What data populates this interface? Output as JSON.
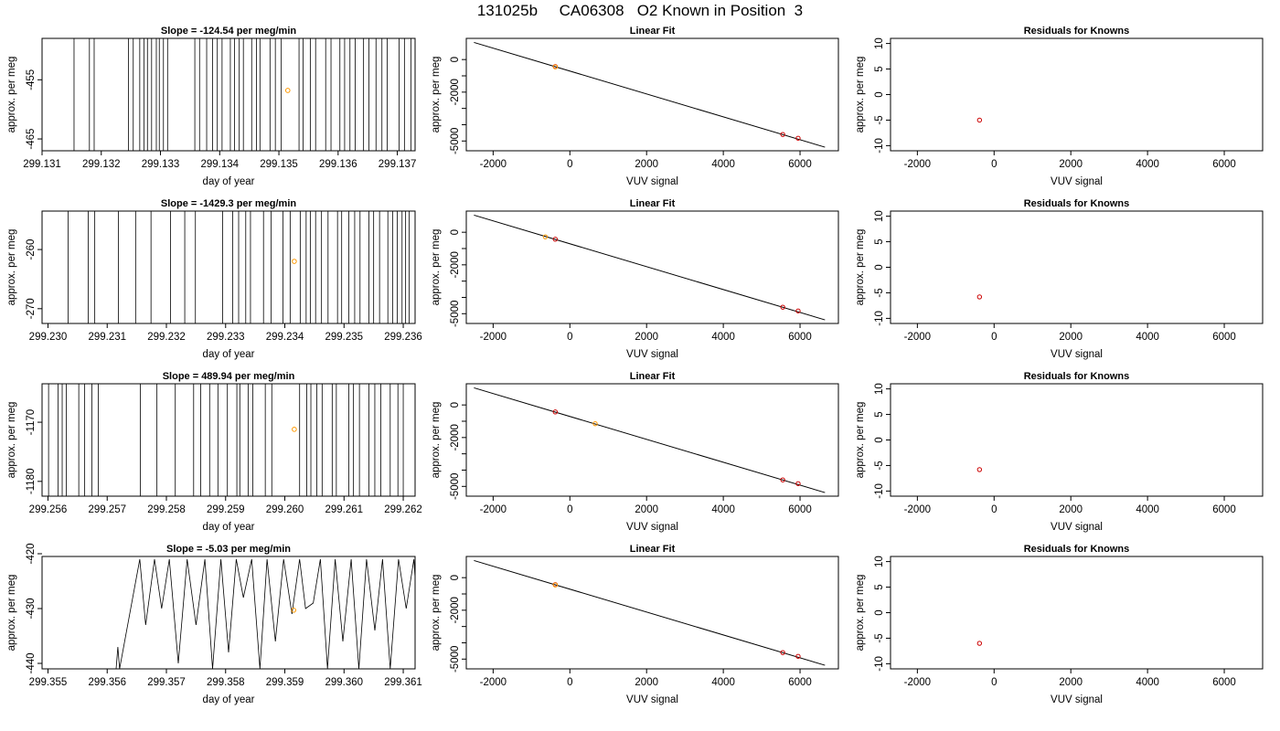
{
  "title": "131025b     CA06308   O2 Known in Position  3",
  "colors": {
    "trace": "#000000",
    "orange_point": "#ff9900",
    "red_point": "#cc0000",
    "fit_line": "#000000"
  },
  "chart_data": [
    {
      "type": "line",
      "title": "Slope =  -124.54  per meg/min",
      "xlabel": "day of year",
      "ylabel": "approx. per meg",
      "xlim": [
        299.131,
        299.1373
      ],
      "ylim": [
        -467,
        -448
      ],
      "xticks": [
        299.131,
        299.132,
        299.133,
        299.134,
        299.135,
        299.136,
        299.137
      ],
      "xtick_labels": [
        "299.131",
        "299.132",
        "299.133",
        "299.134",
        "299.135",
        "299.136",
        "299.137"
      ],
      "yticks": [
        -465,
        -455
      ],
      "ytick_labels": [
        "-465",
        "-455"
      ],
      "spikes": [
        299.13154,
        299.1318,
        299.13188,
        299.13246,
        299.13254,
        299.13265,
        299.13272,
        299.13278,
        299.13285,
        299.13293,
        299.13298,
        299.13305,
        299.13312,
        299.13358,
        299.13366,
        299.13378,
        299.13388,
        299.13396,
        299.13404,
        299.13418,
        299.13425,
        299.13433,
        299.1344,
        299.13454,
        299.13462,
        299.13468,
        299.13485,
        299.13494,
        299.13504,
        299.13534,
        299.13541,
        299.13553,
        299.13562,
        299.13579,
        299.13588,
        299.13603,
        299.13611,
        299.1362,
        299.13629,
        299.13643,
        299.13652,
        299.13664,
        299.13674,
        299.13683,
        299.13703,
        299.13712,
        299.13723,
        299.1373
      ],
      "marked_point": {
        "x": 299.13515,
        "y": -456.8
      }
    },
    {
      "type": "scatter",
      "title": "Linear Fit",
      "xlabel": "VUV signal",
      "ylabel": "approx. per meg",
      "xlim": [
        -2700,
        7000
      ],
      "ylim": [
        -5600,
        1300
      ],
      "xticks": [
        -2000,
        0,
        2000,
        4000,
        6000
      ],
      "xtick_labels": [
        "-2000",
        "0",
        "2000",
        "4000",
        "6000"
      ],
      "yticks": [
        -5000,
        -4000,
        -3000,
        -2000,
        -1000,
        0
      ],
      "ytick_labels": [
        "-5000",
        "",
        "",
        "-2000",
        "",
        "0"
      ],
      "fit_line": {
        "x": [
          -2500,
          6650
        ],
        "y": [
          1050,
          -5380
        ]
      },
      "known_points": [
        {
          "x": -380,
          "y": -430
        },
        {
          "x": 5550,
          "y": -4600
        },
        {
          "x": 5950,
          "y": -4830
        }
      ],
      "sample_point": {
        "x": -380,
        "y": -450
      }
    },
    {
      "type": "scatter",
      "title": "Residuals for Knowns",
      "xlabel": "VUV signal",
      "ylabel": "approx. per meg",
      "xlim": [
        -2700,
        7000
      ],
      "ylim": [
        -11,
        11
      ],
      "xticks": [
        -2000,
        0,
        2000,
        4000,
        6000
      ],
      "xtick_labels": [
        "-2000",
        "0",
        "2000",
        "4000",
        "6000"
      ],
      "yticks": [
        -10,
        -5,
        0,
        5,
        10
      ],
      "ytick_labels": [
        "-10",
        "-5",
        "0",
        "5",
        "10"
      ],
      "points": [
        {
          "x": -380,
          "y": -5.0
        }
      ]
    },
    {
      "type": "line",
      "title": "Slope =  -1429.3  per meg/min",
      "xlabel": "day of year",
      "ylabel": "approx. per meg",
      "xlim": [
        299.2299,
        299.2362
      ],
      "ylim": [
        -272.5,
        -253.5
      ],
      "xticks": [
        299.23,
        299.231,
        299.232,
        299.233,
        299.234,
        299.235,
        299.236
      ],
      "xtick_labels": [
        "299.230",
        "299.231",
        "299.232",
        "299.233",
        "299.234",
        "299.235",
        "299.236"
      ],
      "yticks": [
        -270,
        -260
      ],
      "ytick_labels": [
        "-270",
        "-260"
      ],
      "spikes": [
        299.23034,
        299.23068,
        299.23079,
        299.23119,
        299.23148,
        299.23174,
        299.23207,
        299.23231,
        299.23249,
        299.23295,
        299.23312,
        299.23322,
        299.23334,
        299.23342,
        299.23364,
        299.23377,
        299.23397,
        299.23409,
        299.23426,
        299.23436,
        299.23443,
        299.23452,
        299.23462,
        299.23473,
        299.23489,
        299.23496,
        299.23508,
        299.23518,
        299.23527,
        299.23542,
        299.2355,
        299.2356,
        299.23574,
        299.23582,
        299.2359,
        299.23598,
        299.23604,
        299.2361
      ],
      "marked_point": {
        "x": 299.23416,
        "y": -262.0
      }
    },
    {
      "type": "scatter",
      "title": "Linear Fit",
      "xlabel": "VUV signal",
      "ylabel": "approx. per meg",
      "xlim": [
        -2700,
        7000
      ],
      "ylim": [
        -5600,
        1300
      ],
      "xticks": [
        -2000,
        0,
        2000,
        4000,
        6000
      ],
      "xtick_labels": [
        "-2000",
        "0",
        "2000",
        "4000",
        "6000"
      ],
      "yticks": [
        -5000,
        -4000,
        -3000,
        -2000,
        -1000,
        0
      ],
      "ytick_labels": [
        "-5000",
        "",
        "",
        "-2000",
        "",
        "0"
      ],
      "fit_line": {
        "x": [
          -2500,
          6650
        ],
        "y": [
          1050,
          -5380
        ]
      },
      "known_points": [
        {
          "x": -380,
          "y": -430
        },
        {
          "x": 5550,
          "y": -4600
        },
        {
          "x": 5950,
          "y": -4830
        }
      ],
      "sample_point": {
        "x": -640,
        "y": -280
      }
    },
    {
      "type": "scatter",
      "title": "Residuals for Knowns",
      "xlabel": "VUV signal",
      "ylabel": "approx. per meg",
      "xlim": [
        -2700,
        7000
      ],
      "ylim": [
        -11,
        11
      ],
      "xticks": [
        -2000,
        0,
        2000,
        4000,
        6000
      ],
      "xtick_labels": [
        "-2000",
        "0",
        "2000",
        "4000",
        "6000"
      ],
      "yticks": [
        -10,
        -5,
        0,
        5,
        10
      ],
      "ytick_labels": [
        "-10",
        "-5",
        "0",
        "5",
        "10"
      ],
      "points": [
        {
          "x": -380,
          "y": -5.8
        }
      ]
    },
    {
      "type": "line",
      "title": "Slope =  489.94  per meg/min",
      "xlabel": "day of year",
      "ylabel": "approx. per meg",
      "xlim": [
        299.2559,
        299.2622
      ],
      "ylim": [
        -1182.5,
        -1163.5
      ],
      "xticks": [
        299.256,
        299.257,
        299.258,
        299.259,
        299.26,
        299.261,
        299.262
      ],
      "xtick_labels": [
        "299.256",
        "299.257",
        "299.258",
        "299.259",
        "299.260",
        "299.261",
        "299.262"
      ],
      "yticks": [
        -1180,
        -1170
      ],
      "ytick_labels": [
        "-1180",
        "-1170"
      ],
      "spikes": [
        299.25601,
        299.25617,
        299.25624,
        299.25631,
        299.25652,
        299.25662,
        299.25674,
        299.25685,
        299.25756,
        299.25784,
        299.25815,
        299.25846,
        299.25858,
        299.25873,
        299.25887,
        299.25903,
        299.25919,
        299.25924,
        299.25938,
        299.25946,
        299.25967,
        299.25978,
        299.26025,
        299.26037,
        299.26044,
        299.26054,
        299.26063,
        299.2608,
        299.26087,
        299.26108,
        299.26116,
        299.26126,
        299.26142,
        299.26152,
        299.26162,
        299.26178,
        299.26191,
        299.262
      ],
      "marked_point": {
        "x": 299.26016,
        "y": -1171.2
      }
    },
    {
      "type": "scatter",
      "title": "Linear Fit",
      "xlabel": "VUV signal",
      "ylabel": "approx. per meg",
      "xlim": [
        -2700,
        7000
      ],
      "ylim": [
        -5600,
        1300
      ],
      "xticks": [
        -2000,
        0,
        2000,
        4000,
        6000
      ],
      "xtick_labels": [
        "-2000",
        "0",
        "2000",
        "4000",
        "6000"
      ],
      "yticks": [
        -5000,
        -4000,
        -3000,
        -2000,
        -1000,
        0
      ],
      "ytick_labels": [
        "-5000",
        "",
        "",
        "-2000",
        "",
        "0"
      ],
      "fit_line": {
        "x": [
          -2500,
          6650
        ],
        "y": [
          1050,
          -5380
        ]
      },
      "known_points": [
        {
          "x": -380,
          "y": -430
        },
        {
          "x": 5550,
          "y": -4600
        },
        {
          "x": 5950,
          "y": -4830
        }
      ],
      "sample_point": {
        "x": 660,
        "y": -1150
      }
    },
    {
      "type": "scatter",
      "title": "Residuals for Knowns",
      "xlabel": "VUV signal",
      "ylabel": "approx. per meg",
      "xlim": [
        -2700,
        7000
      ],
      "ylim": [
        -11,
        11
      ],
      "xticks": [
        -2000,
        0,
        2000,
        4000,
        6000
      ],
      "xtick_labels": [
        "-2000",
        "0",
        "2000",
        "4000",
        "6000"
      ],
      "yticks": [
        -10,
        -5,
        0,
        5,
        10
      ],
      "ytick_labels": [
        "-10",
        "-5",
        "0",
        "5",
        "10"
      ],
      "points": [
        {
          "x": -380,
          "y": -5.8
        }
      ]
    },
    {
      "type": "line",
      "title": "Slope =  -5.03  per meg/min",
      "xlabel": "day of year",
      "ylabel": "approx. per meg",
      "xlim": [
        299.3549,
        299.3612
      ],
      "ylim": [
        -441,
        -420.5
      ],
      "xticks": [
        299.355,
        299.356,
        299.357,
        299.358,
        299.359,
        299.36,
        299.361
      ],
      "xtick_labels": [
        "299.355",
        "299.356",
        "299.357",
        "299.358",
        "299.359",
        "299.360",
        "299.361"
      ],
      "yticks": [
        -440,
        -430,
        -420
      ],
      "ytick_labels": [
        "-440",
        "-430",
        "-420"
      ],
      "trace": [
        [
          299.35615,
          -441
        ],
        [
          299.35618,
          -437
        ],
        [
          299.35621,
          -441
        ],
        [
          299.35655,
          -421
        ],
        [
          299.35665,
          -433
        ],
        [
          299.3568,
          -421
        ],
        [
          299.35692,
          -430
        ],
        [
          299.35705,
          -421
        ],
        [
          299.3572,
          -440
        ],
        [
          299.35735,
          -421
        ],
        [
          299.3575,
          -433
        ],
        [
          299.35765,
          -421
        ],
        [
          299.35778,
          -441
        ],
        [
          299.35792,
          -421
        ],
        [
          299.35805,
          -438
        ],
        [
          299.35818,
          -421
        ],
        [
          299.3583,
          -428
        ],
        [
          299.35844,
          -421
        ],
        [
          299.35858,
          -441
        ],
        [
          299.3587,
          -421
        ],
        [
          299.35884,
          -436
        ],
        [
          299.35898,
          -421
        ],
        [
          299.35912,
          -431
        ],
        [
          299.35925,
          -421
        ],
        [
          299.35935,
          -430
        ],
        [
          299.35948,
          -429
        ],
        [
          299.3596,
          -421
        ],
        [
          299.35972,
          -441
        ],
        [
          299.35985,
          -421
        ],
        [
          299.35998,
          -436
        ],
        [
          299.36012,
          -421
        ],
        [
          299.36025,
          -441
        ],
        [
          299.36038,
          -421
        ],
        [
          299.36052,
          -434
        ],
        [
          299.36065,
          -421
        ],
        [
          299.36078,
          -441
        ],
        [
          299.36092,
          -421
        ],
        [
          299.36105,
          -430
        ],
        [
          299.36118,
          -421
        ],
        [
          299.3613,
          -441
        ],
        [
          299.36143,
          -421
        ],
        [
          299.36152,
          -433
        ],
        [
          299.36158,
          -421
        ]
      ],
      "marked_point": {
        "x": 299.35915,
        "y": -430.3
      }
    },
    {
      "type": "scatter",
      "title": "Linear Fit",
      "xlabel": "VUV signal",
      "ylabel": "approx. per meg",
      "xlim": [
        -2700,
        7000
      ],
      "ylim": [
        -5600,
        1300
      ],
      "xticks": [
        -2000,
        0,
        2000,
        4000,
        6000
      ],
      "xtick_labels": [
        "-2000",
        "0",
        "2000",
        "4000",
        "6000"
      ],
      "yticks": [
        -5000,
        -4000,
        -3000,
        -2000,
        -1000,
        0
      ],
      "ytick_labels": [
        "-5000",
        "",
        "",
        "-2000",
        "",
        "0"
      ],
      "fit_line": {
        "x": [
          -2500,
          6650
        ],
        "y": [
          1050,
          -5380
        ]
      },
      "known_points": [
        {
          "x": -380,
          "y": -430
        },
        {
          "x": 5550,
          "y": -4600
        },
        {
          "x": 5950,
          "y": -4830
        }
      ],
      "sample_point": {
        "x": -380,
        "y": -450
      }
    },
    {
      "type": "scatter",
      "title": "Residuals for Knowns",
      "xlabel": "VUV signal",
      "ylabel": "approx. per meg",
      "xlim": [
        -2700,
        7000
      ],
      "ylim": [
        -11,
        11
      ],
      "xticks": [
        -2000,
        0,
        2000,
        4000,
        6000
      ],
      "xtick_labels": [
        "-2000",
        "0",
        "2000",
        "4000",
        "6000"
      ],
      "yticks": [
        -10,
        -5,
        0,
        5,
        10
      ],
      "ytick_labels": [
        "-10",
        "-5",
        "0",
        "5",
        "10"
      ],
      "points": [
        {
          "x": -380,
          "y": -6.0
        }
      ]
    }
  ]
}
